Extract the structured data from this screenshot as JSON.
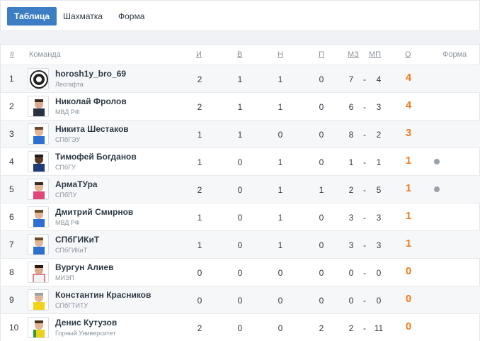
{
  "tabs": [
    {
      "label": "Таблица",
      "active": true
    },
    {
      "label": "Шахматка",
      "active": false
    },
    {
      "label": "Форма",
      "active": false
    }
  ],
  "header": {
    "rank": "#",
    "team": "Команда",
    "played": "И",
    "won": "В",
    "draw": "Н",
    "lost": "П",
    "goals_for": "МЗ",
    "goals_against": "МП",
    "points": "О",
    "form": "Форма"
  },
  "rows": [
    {
      "rank": "1",
      "name": "horosh1y_bro_69",
      "sub": "Лесгафта",
      "played": "2",
      "won": "1",
      "draw": "1",
      "lost": "0",
      "gf": "7",
      "dash": "-",
      "ga": "4",
      "points": "4",
      "avatar": "logo-circle",
      "form_dot": false
    },
    {
      "rank": "2",
      "name": "Николай Фролов",
      "sub": "МВД РФ",
      "played": "2",
      "won": "1",
      "draw": "1",
      "lost": "0",
      "gf": "6",
      "dash": "-",
      "ga": "3",
      "points": "4",
      "avatar": "player-dark",
      "form_dot": false
    },
    {
      "rank": "3",
      "name": "Никита Шестаков",
      "sub": "СПбГЭУ",
      "played": "1",
      "won": "1",
      "draw": "0",
      "lost": "0",
      "gf": "8",
      "dash": "-",
      "ga": "2",
      "points": "3",
      "avatar": "player-blue",
      "form_dot": false
    },
    {
      "rank": "4",
      "name": "Тимофей Богданов",
      "sub": "СПбГУ",
      "played": "1",
      "won": "0",
      "draw": "1",
      "lost": "0",
      "gf": "1",
      "dash": "-",
      "ga": "1",
      "points": "1",
      "avatar": "player-navy",
      "form_dot": true
    },
    {
      "rank": "5",
      "name": "АрмаТУра",
      "sub": "СПбПУ",
      "played": "2",
      "won": "0",
      "draw": "1",
      "lost": "1",
      "gf": "2",
      "dash": "-",
      "ga": "5",
      "points": "1",
      "avatar": "player-pink",
      "form_dot": true
    },
    {
      "rank": "6",
      "name": "Дмитрий Смирнов",
      "sub": "МВД РФ",
      "played": "1",
      "won": "0",
      "draw": "1",
      "lost": "0",
      "gf": "3",
      "dash": "-",
      "ga": "3",
      "points": "1",
      "avatar": "player-blue",
      "form_dot": false
    },
    {
      "rank": "7",
      "name": "СПбГИКиТ",
      "sub": "СПбГИКиТ",
      "played": "1",
      "won": "0",
      "draw": "1",
      "lost": "0",
      "gf": "3",
      "dash": "-",
      "ga": "3",
      "points": "1",
      "avatar": "player-blue",
      "form_dot": false
    },
    {
      "rank": "8",
      "name": "Вургун Алиев",
      "sub": "МИЭП",
      "played": "0",
      "won": "0",
      "draw": "0",
      "lost": "0",
      "gf": "0",
      "dash": "-",
      "ga": "0",
      "points": "0",
      "avatar": "player-white",
      "form_dot": false
    },
    {
      "rank": "9",
      "name": "Константин Красников",
      "sub": "СПбГТИТУ",
      "played": "0",
      "won": "0",
      "draw": "0",
      "lost": "0",
      "gf": "0",
      "dash": "-",
      "ga": "0",
      "points": "0",
      "avatar": "player-yellow",
      "form_dot": false
    },
    {
      "rank": "10",
      "name": "Денис Кутузов",
      "sub": "Горный Университет",
      "played": "2",
      "won": "0",
      "draw": "0",
      "lost": "2",
      "gf": "2",
      "dash": "-",
      "ga": "11",
      "points": "0",
      "avatar": "player-yellow-green",
      "form_dot": false
    }
  ],
  "colors": {
    "accent": "#3d7dc4",
    "points": "#f07c1f",
    "form_dot": "#9aa1a8"
  }
}
